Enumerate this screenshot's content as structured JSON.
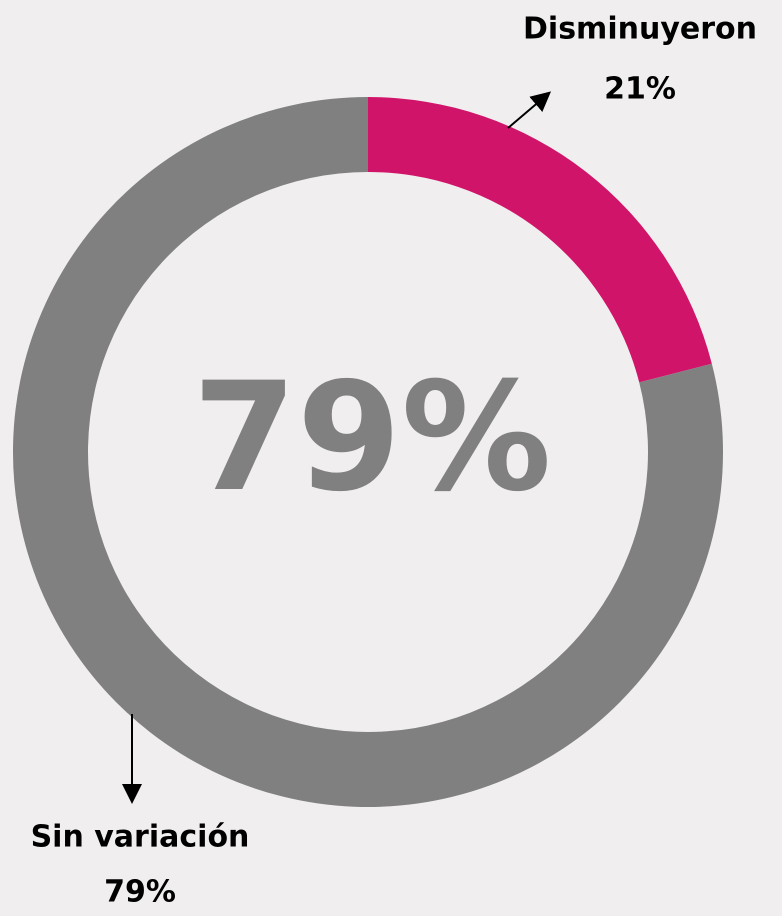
{
  "chart_data": {
    "type": "donut",
    "categories": [
      "Disminuyeron",
      "Sin variación"
    ],
    "values": [
      21,
      79
    ],
    "value_labels": [
      "21%",
      "79%"
    ],
    "colors": [
      "#d0146a",
      "#808080"
    ],
    "center_label": "79%"
  }
}
